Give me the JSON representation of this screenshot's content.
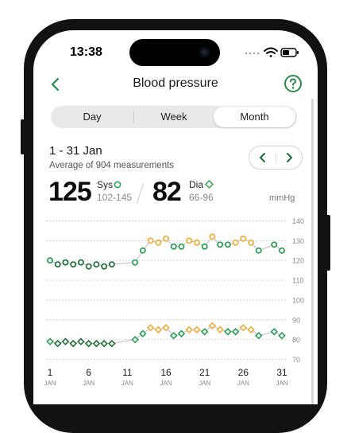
{
  "status_bar": {
    "time": "13:38"
  },
  "nav": {
    "title": "Blood pressure"
  },
  "tabs": [
    {
      "label": "Day",
      "active": false
    },
    {
      "label": "Week",
      "active": false
    },
    {
      "label": "Month",
      "active": true
    }
  ],
  "summary": {
    "range": "1 - 31 Jan",
    "average_text": "Average of 904 measurements",
    "systolic": {
      "value": "125",
      "label": "Sys",
      "range": "102-145"
    },
    "diastolic": {
      "value": "82",
      "label": "Dia",
      "range": "66-96"
    },
    "unit": "mmHg"
  },
  "colors": {
    "normal": "#2a9d55",
    "elevated": "#f0ae3c",
    "low_early": "#1f6e3a",
    "line": "#bdbdbd"
  },
  "chart_data": {
    "type": "scatter",
    "y_ticks": [
      140,
      130,
      120,
      110,
      100,
      90,
      80,
      70
    ],
    "ylim": [
      67,
      143
    ],
    "x_ticks": [
      {
        "day": 1,
        "label": "1",
        "month": "JAN"
      },
      {
        "day": 6,
        "label": "6",
        "month": "JAN"
      },
      {
        "day": 11,
        "label": "11",
        "month": "JAN"
      },
      {
        "day": 16,
        "label": "16",
        "month": "JAN"
      },
      {
        "day": 21,
        "label": "21",
        "month": "JAN"
      },
      {
        "day": 26,
        "label": "26",
        "month": "JAN"
      },
      {
        "day": 31,
        "label": "31",
        "month": "JAN"
      }
    ],
    "xlim": [
      1,
      31
    ],
    "series": [
      {
        "marker": "circle",
        "points": [
          {
            "x": 1,
            "y": 120,
            "s": "normal"
          },
          {
            "x": 2,
            "y": 118,
            "s": "dark"
          },
          {
            "x": 3,
            "y": 119,
            "s": "dark"
          },
          {
            "x": 4,
            "y": 118,
            "s": "dark"
          },
          {
            "x": 5,
            "y": 119,
            "s": "dark"
          },
          {
            "x": 6,
            "y": 117,
            "s": "dark"
          },
          {
            "x": 7,
            "y": 118,
            "s": "dark"
          },
          {
            "x": 8,
            "y": 117,
            "s": "dark"
          },
          {
            "x": 9,
            "y": 118,
            "s": "dark"
          },
          {
            "x": 12,
            "y": 119,
            "s": "normal"
          },
          {
            "x": 13,
            "y": 125,
            "s": "normal"
          },
          {
            "x": 14,
            "y": 130,
            "s": "elevated"
          },
          {
            "x": 15,
            "y": 129,
            "s": "elevated"
          },
          {
            "x": 16,
            "y": 131,
            "s": "elevated"
          },
          {
            "x": 17,
            "y": 127,
            "s": "normal"
          },
          {
            "x": 18,
            "y": 127,
            "s": "normal"
          },
          {
            "x": 19,
            "y": 130,
            "s": "elevated"
          },
          {
            "x": 20,
            "y": 129,
            "s": "elevated"
          },
          {
            "x": 21,
            "y": 127,
            "s": "normal"
          },
          {
            "x": 22,
            "y": 132,
            "s": "elevated"
          },
          {
            "x": 23,
            "y": 128,
            "s": "normal"
          },
          {
            "x": 24,
            "y": 128,
            "s": "normal"
          },
          {
            "x": 25,
            "y": 129,
            "s": "elevated"
          },
          {
            "x": 26,
            "y": 131,
            "s": "elevated"
          },
          {
            "x": 27,
            "y": 129,
            "s": "elevated"
          },
          {
            "x": 28,
            "y": 125,
            "s": "normal"
          },
          {
            "x": 30,
            "y": 128,
            "s": "normal"
          },
          {
            "x": 31,
            "y": 125,
            "s": "normal"
          }
        ]
      },
      {
        "marker": "diamond",
        "points": [
          {
            "x": 1,
            "y": 79,
            "s": "normal"
          },
          {
            "x": 2,
            "y": 78,
            "s": "dark"
          },
          {
            "x": 3,
            "y": 79,
            "s": "dark"
          },
          {
            "x": 4,
            "y": 78,
            "s": "dark"
          },
          {
            "x": 5,
            "y": 79,
            "s": "dark"
          },
          {
            "x": 6,
            "y": 78,
            "s": "dark"
          },
          {
            "x": 7,
            "y": 78,
            "s": "dark"
          },
          {
            "x": 8,
            "y": 78,
            "s": "dark"
          },
          {
            "x": 9,
            "y": 78,
            "s": "dark"
          },
          {
            "x": 12,
            "y": 80,
            "s": "normal"
          },
          {
            "x": 13,
            "y": 83,
            "s": "normal"
          },
          {
            "x": 14,
            "y": 86,
            "s": "elevated"
          },
          {
            "x": 15,
            "y": 85,
            "s": "elevated"
          },
          {
            "x": 16,
            "y": 86,
            "s": "elevated"
          },
          {
            "x": 17,
            "y": 82,
            "s": "normal"
          },
          {
            "x": 18,
            "y": 83,
            "s": "normal"
          },
          {
            "x": 19,
            "y": 85,
            "s": "elevated"
          },
          {
            "x": 20,
            "y": 85,
            "s": "elevated"
          },
          {
            "x": 21,
            "y": 84,
            "s": "normal"
          },
          {
            "x": 22,
            "y": 87,
            "s": "elevated"
          },
          {
            "x": 23,
            "y": 85,
            "s": "elevated"
          },
          {
            "x": 24,
            "y": 84,
            "s": "normal"
          },
          {
            "x": 25,
            "y": 84,
            "s": "normal"
          },
          {
            "x": 26,
            "y": 86,
            "s": "elevated"
          },
          {
            "x": 27,
            "y": 85,
            "s": "elevated"
          },
          {
            "x": 28,
            "y": 82,
            "s": "normal"
          },
          {
            "x": 30,
            "y": 84,
            "s": "normal"
          },
          {
            "x": 31,
            "y": 82,
            "s": "normal"
          }
        ]
      }
    ]
  }
}
